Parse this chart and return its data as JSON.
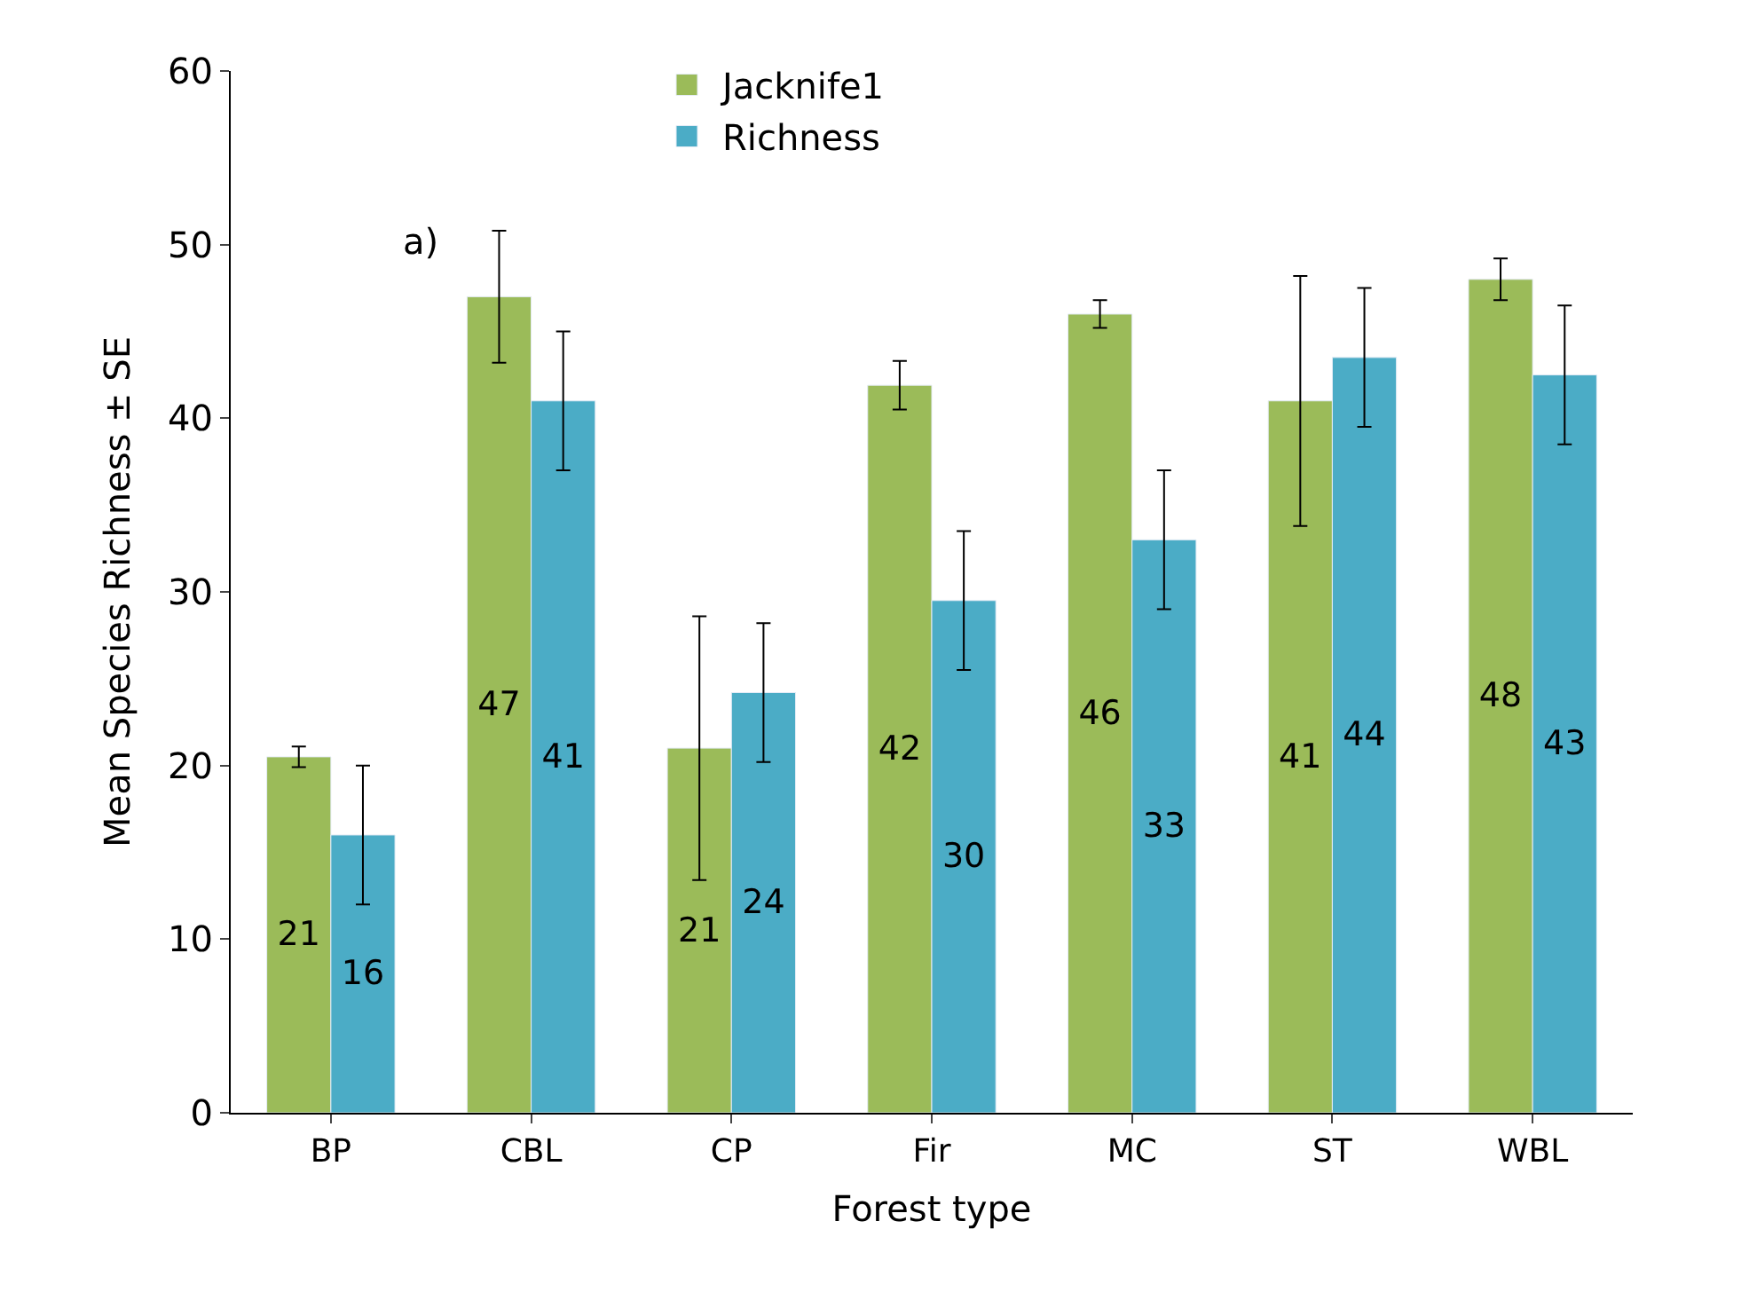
{
  "chart_data": {
    "type": "bar",
    "xlabel": "Forest type",
    "ylabel": "Mean Species Richness ± SE",
    "categories": [
      "BP",
      "CBL",
      "CP",
      "Fir",
      "MC",
      "ST",
      "WBL"
    ],
    "series": [
      {
        "name": "Jacknife1",
        "color": "#9bbb59",
        "values": [
          20.5,
          47,
          21,
          41.9,
          46,
          41,
          48
        ],
        "errors": [
          0.6,
          3.8,
          7.6,
          1.4,
          0.8,
          7.2,
          1.2
        ],
        "value_labels": [
          "21",
          "47",
          "21",
          "42",
          "46",
          "41",
          "48"
        ]
      },
      {
        "name": "Richness",
        "color": "#4bacc6",
        "values": [
          16,
          41,
          24.2,
          29.5,
          33,
          43.5,
          42.5
        ],
        "errors": [
          4,
          4,
          4,
          4,
          4,
          4,
          4
        ],
        "value_labels": [
          "16",
          "41",
          "24",
          "30",
          "33",
          "44",
          "43"
        ]
      }
    ],
    "ylim": [
      0,
      60
    ],
    "yticks": [
      0,
      10,
      20,
      30,
      40,
      50,
      60
    ],
    "grid": false,
    "legend": "top",
    "annotations": [
      "a)"
    ]
  }
}
